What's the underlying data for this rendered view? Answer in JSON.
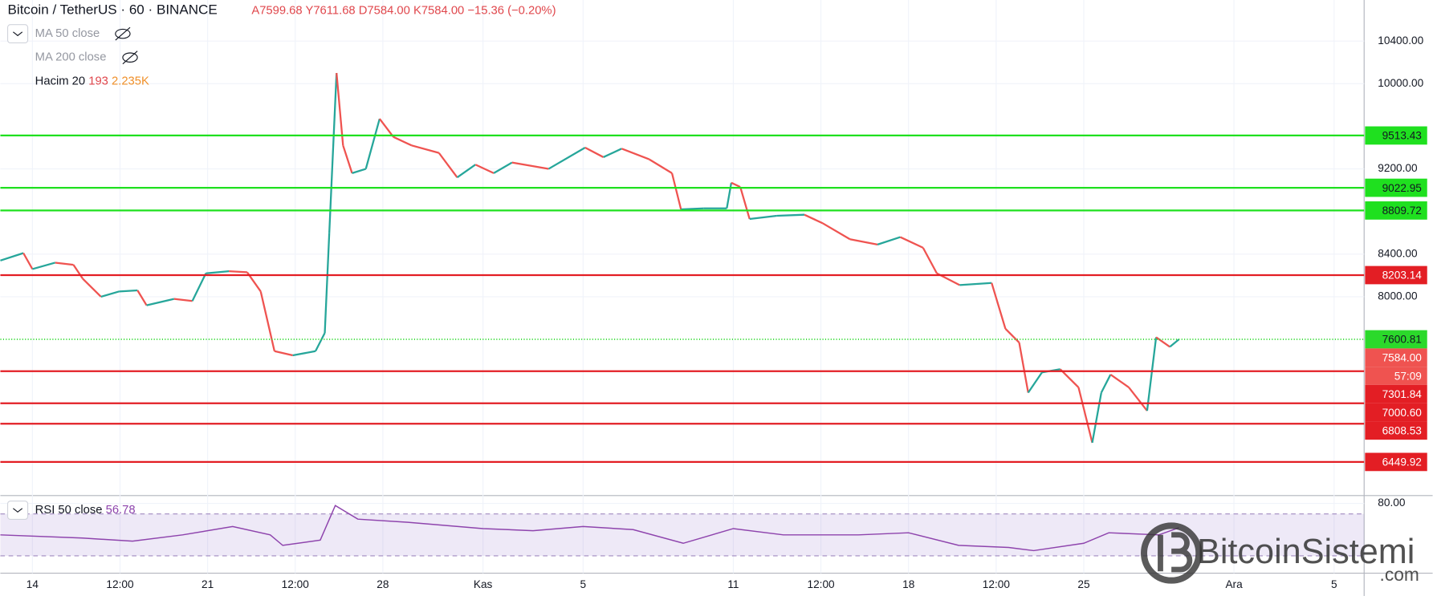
{
  "header": {
    "symbol": "Bitcoin / TetherUS",
    "interval": "60",
    "exchange": "BINANCE",
    "ohlc": "A7599.68 Y7611.68 D7584.00 K7584.00",
    "change": "−15.36 (−0.20%)"
  },
  "legend": {
    "ma50": "MA 50 close",
    "ma200": "MA 200 close",
    "volume": "Hacim 20",
    "volume_value": "193",
    "volume_ma": "2.235K"
  },
  "watermark": {
    "name": "BitcoinSistemi",
    "domain": ".com"
  },
  "chart_data": [
    {
      "type": "line",
      "up_color": "#26a69a",
      "down_color": "#ef5350",
      "x": [
        -1.28,
        -0.36,
        0,
        0.91,
        1.64,
        2.01,
        2.74,
        3.47,
        4.2,
        4.56,
        5.66,
        6.39,
        6.93,
        7.85,
        8.58,
        9.12,
        9.67,
        10.4,
        11.31,
        11.68,
        11.86,
        12.15,
        12.41,
        12.77,
        13.32,
        13.87,
        14.42,
        15.15,
        16.24,
        16.97,
        17.7,
        18.43,
        19.16,
        20.62,
        22.08,
        22.81,
        23.54,
        24.64,
        25.55,
        25.91,
        26.82,
        27.74,
        27.92,
        28.28,
        28.65,
        29.74,
        30.84,
        31.57,
        32.66,
        33.76,
        34.67,
        35.58,
        36.13,
        37.04,
        38.32,
        38.87,
        39.42,
        39.78,
        40.33,
        41.06,
        41.79,
        42.34,
        42.7,
        43.07,
        43.8,
        44.53,
        44.89,
        45.44,
        45.8
      ],
      "values": [
        8340,
        8410,
        8260,
        8320,
        8300,
        8170,
        8000,
        8050,
        8060,
        7920,
        7980,
        7960,
        8220,
        8240,
        8230,
        8050,
        7490,
        7450,
        7490,
        7660,
        8600,
        10100,
        9420,
        9160,
        9200,
        9670,
        9500,
        9420,
        9350,
        9120,
        9240,
        9160,
        9260,
        9200,
        9400,
        9310,
        9390,
        9290,
        9160,
        8820,
        8830,
        8830,
        9070,
        9030,
        8730,
        8760,
        8770,
        8690,
        8540,
        8490,
        8560,
        8460,
        8220,
        8110,
        8130,
        7700,
        7570,
        7100,
        7290,
        7320,
        7150,
        6630,
        7100,
        7270,
        7150,
        6930,
        7620,
        7530,
        7600
      ],
      "xlim": [
        -1.28,
        53.2
      ],
      "ylim": [
        6117,
        10785
      ],
      "yticks": [
        {
          "value": 10400,
          "label": "10400.00"
        },
        {
          "value": 10000,
          "label": "10000.00"
        },
        {
          "value": 9200,
          "label": "9200.00"
        },
        {
          "value": 8400,
          "label": "8400.00"
        },
        {
          "value": 8000,
          "label": "8000.00"
        }
      ],
      "xticks": [
        {
          "value": 0,
          "label": "14"
        },
        {
          "value": 3.5,
          "label": "12:00"
        },
        {
          "value": 7,
          "label": "21"
        },
        {
          "value": 10.5,
          "label": "12:00"
        },
        {
          "value": 14,
          "label": "28"
        },
        {
          "value": 18,
          "label": "Kas"
        },
        {
          "value": 22,
          "label": "5"
        },
        {
          "value": 28,
          "label": "11"
        },
        {
          "value": 31.5,
          "label": "12:00"
        },
        {
          "value": 35,
          "label": "18"
        },
        {
          "value": 38.5,
          "label": "12:00"
        },
        {
          "value": 42,
          "label": "25"
        },
        {
          "value": 48,
          "label": "Ara"
        },
        {
          "value": 52,
          "label": "5"
        }
      ],
      "levels": [
        {
          "value": 9513.43,
          "label": "9513.43",
          "color": "#1fe01f"
        },
        {
          "value": 9022.95,
          "label": "9022.95",
          "color": "#1fe01f"
        },
        {
          "value": 8809.72,
          "label": "8809.72",
          "color": "#1fe01f"
        },
        {
          "value": 8203.14,
          "label": "8203.14",
          "color": "#e31e24"
        },
        {
          "value": 7301.84,
          "label": "7301.84",
          "color": "#e31e24"
        },
        {
          "value": 7000.6,
          "label": "7000.60",
          "color": "#e31e24"
        },
        {
          "value": 6808.53,
          "label": "6808.53",
          "color": "#e31e24"
        },
        {
          "value": 6449.92,
          "label": "6449.92",
          "color": "#e31e24"
        }
      ],
      "last_price": {
        "value": 7600.81,
        "label": "7600.81",
        "color": "#2bd92b"
      },
      "close": {
        "value": 7584,
        "label": "7584.00",
        "color": "#ef5350"
      },
      "countdown": "57:09"
    },
    {
      "type": "line",
      "title": "RSI 50 close",
      "last_value": 56.78,
      "color": "#8e44ad",
      "x": [
        -1.28,
        2,
        4,
        6,
        8,
        9.5,
        10,
        11.5,
        12.1,
        13,
        15,
        18,
        20,
        22,
        24,
        26,
        28,
        30,
        33,
        35,
        37,
        39,
        40,
        42,
        43,
        45,
        45.8
      ],
      "values": [
        50,
        47,
        44,
        50,
        58,
        50,
        40,
        45,
        78,
        65,
        62,
        56,
        54,
        58,
        55,
        42,
        56,
        50,
        50,
        52,
        40,
        38,
        35,
        42,
        52,
        50,
        56.78
      ],
      "xlim": [
        -1.28,
        53.2
      ],
      "ylim": [
        13.5,
        85.7
      ],
      "yticks": [
        {
          "value": 80,
          "label": "80.00"
        }
      ],
      "band": [
        30,
        70
      ]
    }
  ]
}
